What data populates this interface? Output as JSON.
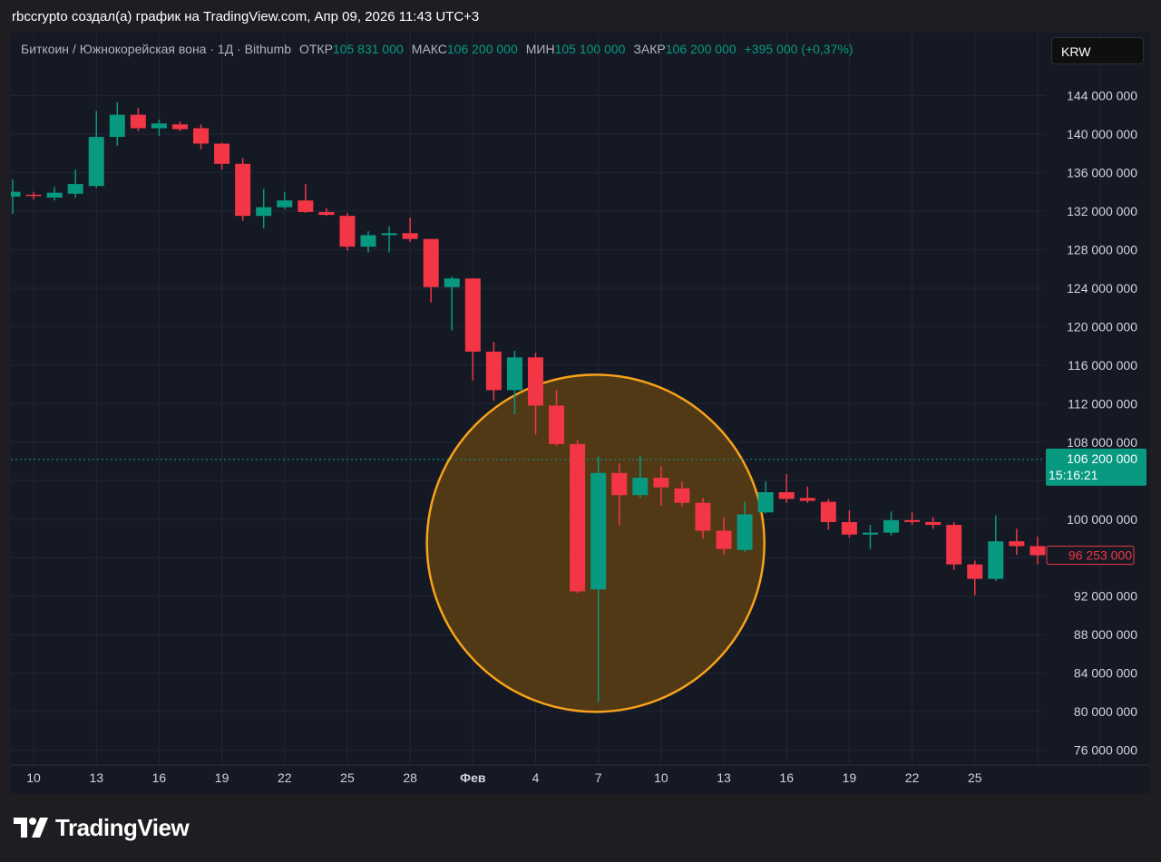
{
  "attribution": "rbccrypto создал(а) график на TradingView.com, Апр 09, 2026 11:43 UTC+3",
  "legend": {
    "symbol": "Биткоин / Южнокорейская вона · 1Д · Bithumb",
    "open_label": "ОТКР",
    "open_value": "105 831 000",
    "high_label": "МАКС",
    "high_value": "106 200 000",
    "low_label": "МИН",
    "low_value": "105 100 000",
    "close_label": "ЗАКР",
    "close_value": "106 200 000",
    "change": "+395 000 (+0,37%)"
  },
  "currency": "KRW",
  "brand": "TradingView",
  "colors": {
    "up": "#089981",
    "down": "#f23645",
    "background": "#151924",
    "grid": "#232733",
    "highlight_stroke": "#f7a21b",
    "highlight_fill": "#5c4014"
  },
  "price_labels": {
    "last_price": "106 200 000",
    "countdown": "15:16:21",
    "marker_price": "96 253 000"
  },
  "chart_data": {
    "type": "candlestick",
    "ylim": [
      74000000,
      147000000
    ],
    "y_ticks": [
      76000000,
      80000000,
      84000000,
      88000000,
      92000000,
      96000000,
      100000000,
      104000000,
      108000000,
      112000000,
      116000000,
      120000000,
      124000000,
      128000000,
      132000000,
      136000000,
      140000000,
      144000000
    ],
    "y_tick_labels": [
      "76 000 000",
      "80 000 000",
      "84 000 000",
      "88 000 000",
      "92 000 000",
      "",
      "100 000 000",
      "",
      "108 000 000",
      "112 000 000",
      "116 000 000",
      "120 000 000",
      "124 000 000",
      "128 000 000",
      "132 000 000",
      "136 000 000",
      "140 000 000",
      "144 000 000"
    ],
    "x_tick_indices": [
      1,
      4,
      7,
      10,
      13,
      16,
      19,
      22,
      25,
      28,
      31,
      34,
      37,
      40,
      43,
      46,
      49,
      52
    ],
    "x_tick_labels": [
      "10",
      "13",
      "16",
      "19",
      "22",
      "25",
      "28",
      "Фев",
      "4",
      "7",
      "10",
      "13",
      "16",
      "19",
      "22",
      "25",
      "",
      ""
    ],
    "last_price_line": 106200000,
    "highlight": {
      "center_index": 28,
      "center_price": 97500000,
      "note": "circle"
    },
    "candles": [
      {
        "o": 133500000,
        "h": 135300000,
        "l": 131700000,
        "c": 134000000
      },
      {
        "o": 133700000,
        "h": 134000000,
        "l": 133200000,
        "c": 133600000
      },
      {
        "o": 133400000,
        "h": 134500000,
        "l": 133100000,
        "c": 133900000
      },
      {
        "o": 133800000,
        "h": 136300000,
        "l": 133400000,
        "c": 134800000
      },
      {
        "o": 134600000,
        "h": 142400000,
        "l": 134400000,
        "c": 139700000
      },
      {
        "o": 139700000,
        "h": 143300000,
        "l": 138800000,
        "c": 142000000
      },
      {
        "o": 142000000,
        "h": 142700000,
        "l": 140300000,
        "c": 140600000
      },
      {
        "o": 140600000,
        "h": 141500000,
        "l": 139800000,
        "c": 141100000
      },
      {
        "o": 141000000,
        "h": 141300000,
        "l": 140300000,
        "c": 140500000
      },
      {
        "o": 140600000,
        "h": 141000000,
        "l": 138400000,
        "c": 139000000
      },
      {
        "o": 139000000,
        "h": 139100000,
        "l": 136300000,
        "c": 136900000
      },
      {
        "o": 136900000,
        "h": 137500000,
        "l": 131000000,
        "c": 131500000
      },
      {
        "o": 131500000,
        "h": 134300000,
        "l": 130200000,
        "c": 132400000
      },
      {
        "o": 132400000,
        "h": 134000000,
        "l": 132200000,
        "c": 133100000
      },
      {
        "o": 133100000,
        "h": 134800000,
        "l": 131800000,
        "c": 131900000
      },
      {
        "o": 131900000,
        "h": 132300000,
        "l": 131500000,
        "c": 131600000
      },
      {
        "o": 131500000,
        "h": 131800000,
        "l": 127900000,
        "c": 128300000
      },
      {
        "o": 128300000,
        "h": 129900000,
        "l": 127700000,
        "c": 129500000
      },
      {
        "o": 129500000,
        "h": 130400000,
        "l": 127700000,
        "c": 129700000
      },
      {
        "o": 129700000,
        "h": 131300000,
        "l": 128800000,
        "c": 129100000
      },
      {
        "o": 129100000,
        "h": 129100000,
        "l": 122500000,
        "c": 124100000
      },
      {
        "o": 124100000,
        "h": 125200000,
        "l": 119600000,
        "c": 125000000
      },
      {
        "o": 125000000,
        "h": 125000000,
        "l": 114400000,
        "c": 117400000
      },
      {
        "o": 117400000,
        "h": 118400000,
        "l": 112300000,
        "c": 113400000
      },
      {
        "o": 113400000,
        "h": 117500000,
        "l": 110900000,
        "c": 116800000
      },
      {
        "o": 116800000,
        "h": 117300000,
        "l": 108800000,
        "c": 111800000
      },
      {
        "o": 111800000,
        "h": 113400000,
        "l": 107600000,
        "c": 107800000
      },
      {
        "o": 107800000,
        "h": 108200000,
        "l": 92300000,
        "c": 92500000
      },
      {
        "o": 92700000,
        "h": 106500000,
        "l": 81000000,
        "c": 104800000
      },
      {
        "o": 104800000,
        "h": 105800000,
        "l": 99400000,
        "c": 102500000
      },
      {
        "o": 102500000,
        "h": 106600000,
        "l": 102200000,
        "c": 104300000
      },
      {
        "o": 104300000,
        "h": 105500000,
        "l": 101400000,
        "c": 103300000
      },
      {
        "o": 103200000,
        "h": 103900000,
        "l": 101300000,
        "c": 101700000
      },
      {
        "o": 101700000,
        "h": 102200000,
        "l": 98000000,
        "c": 98800000
      },
      {
        "o": 98800000,
        "h": 100200000,
        "l": 96300000,
        "c": 96900000
      },
      {
        "o": 96800000,
        "h": 101800000,
        "l": 96600000,
        "c": 100500000
      },
      {
        "o": 100700000,
        "h": 103900000,
        "l": 100600000,
        "c": 102800000
      },
      {
        "o": 102800000,
        "h": 104700000,
        "l": 101700000,
        "c": 102100000
      },
      {
        "o": 102200000,
        "h": 103400000,
        "l": 101700000,
        "c": 101900000
      },
      {
        "o": 101800000,
        "h": 102100000,
        "l": 98900000,
        "c": 99700000
      },
      {
        "o": 99700000,
        "h": 100900000,
        "l": 98100000,
        "c": 98400000
      },
      {
        "o": 98400000,
        "h": 99400000,
        "l": 96900000,
        "c": 98600000
      },
      {
        "o": 98600000,
        "h": 100800000,
        "l": 98300000,
        "c": 99900000
      },
      {
        "o": 99900000,
        "h": 100700000,
        "l": 99400000,
        "c": 99700000
      },
      {
        "o": 99700000,
        "h": 100200000,
        "l": 99000000,
        "c": 99400000
      },
      {
        "o": 99400000,
        "h": 99700000,
        "l": 94700000,
        "c": 95300000
      },
      {
        "o": 95300000,
        "h": 95700000,
        "l": 92100000,
        "c": 93800000
      },
      {
        "o": 93800000,
        "h": 100400000,
        "l": 93600000,
        "c": 97700000
      },
      {
        "o": 97700000,
        "h": 99000000,
        "l": 96300000,
        "c": 97200000
      },
      {
        "o": 97200000,
        "h": 98200000,
        "l": 95300000,
        "c": 96253000
      }
    ]
  }
}
